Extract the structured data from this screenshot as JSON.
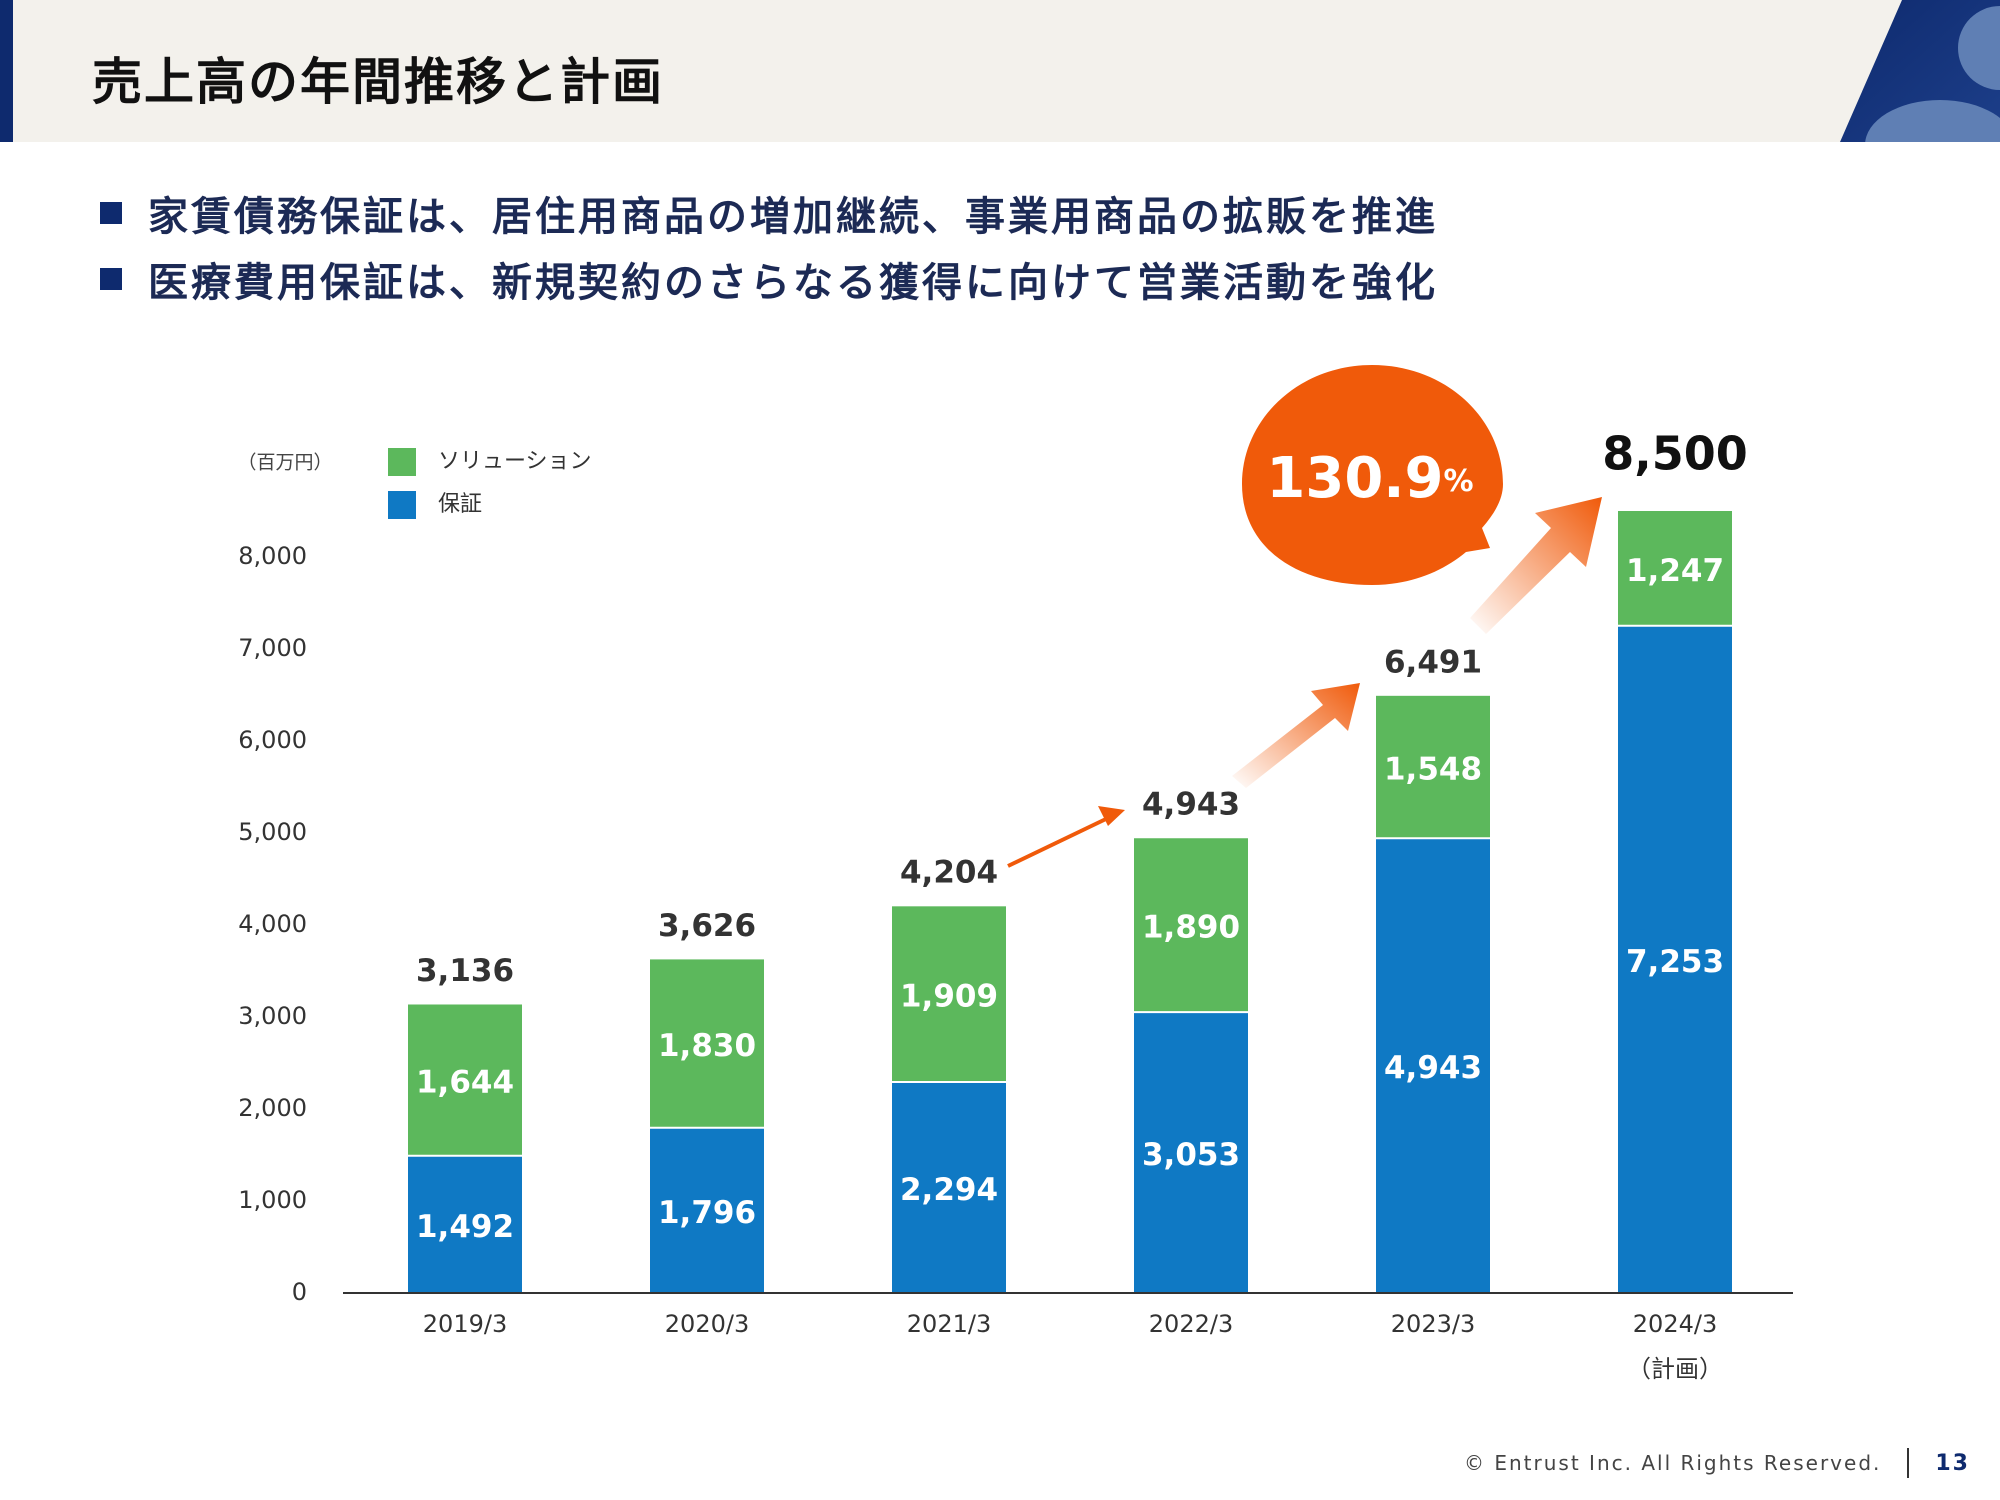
{
  "header": {
    "title": "売上高の年間推移と計画"
  },
  "bullets": [
    "家賃債務保証は、居住用商品の増加継続、事業用商品の拡販を推進",
    "医療費用保証は、新規契約のさらなる獲得に向けて営業活動を強化"
  ],
  "footer": {
    "copyright": "© Entrust Inc. All Rights Reserved.",
    "page_number": "13"
  },
  "colors": {
    "header_bg": "#f3f1ec",
    "navy": "#0e2a6e",
    "guarantee": "#0f79c4",
    "solution": "#5cb85c",
    "accent_orange": "#f05a0a"
  },
  "chart_data": {
    "type": "bar",
    "stacked": true,
    "unit_label": "（百万円）",
    "categories": [
      "2019/3",
      "2020/3",
      "2021/3",
      "2022/3",
      "2023/3",
      "2024/3"
    ],
    "category_notes": [
      "",
      "",
      "",
      "",
      "",
      "（計画）"
    ],
    "series": [
      {
        "name": "保証",
        "color": "#0f79c4",
        "values": [
          1492,
          1796,
          2294,
          3053,
          4943,
          7253
        ],
        "labels": [
          "1,492",
          "1,796",
          "2,294",
          "3,053",
          "4,943",
          "7,253"
        ]
      },
      {
        "name": "ソリューション",
        "color": "#5cb85c",
        "values": [
          1644,
          1830,
          1909,
          1890,
          1548,
          1247
        ],
        "labels": [
          "1,644",
          "1,830",
          "1,909",
          "1,890",
          "1,548",
          "1,247"
        ]
      }
    ],
    "totals": [
      3136,
      3626,
      4204,
      4943,
      6491,
      8500
    ],
    "total_labels": [
      "3,136",
      "3,626",
      "4,204",
      "4,943",
      "6,491",
      "8,500"
    ],
    "legend": {
      "placement": "top-left",
      "order": [
        "ソリューション",
        "保証"
      ]
    },
    "ylim": [
      0,
      8000
    ],
    "yticks": [
      0,
      1000,
      2000,
      3000,
      4000,
      5000,
      6000,
      7000,
      8000
    ],
    "ytick_labels": [
      "0",
      "1,000",
      "2,000",
      "3,000",
      "4,000",
      "5,000",
      "6,000",
      "7,000",
      "8,000"
    ],
    "grid": false,
    "callout": {
      "value": "130.9",
      "unit": "%"
    }
  }
}
